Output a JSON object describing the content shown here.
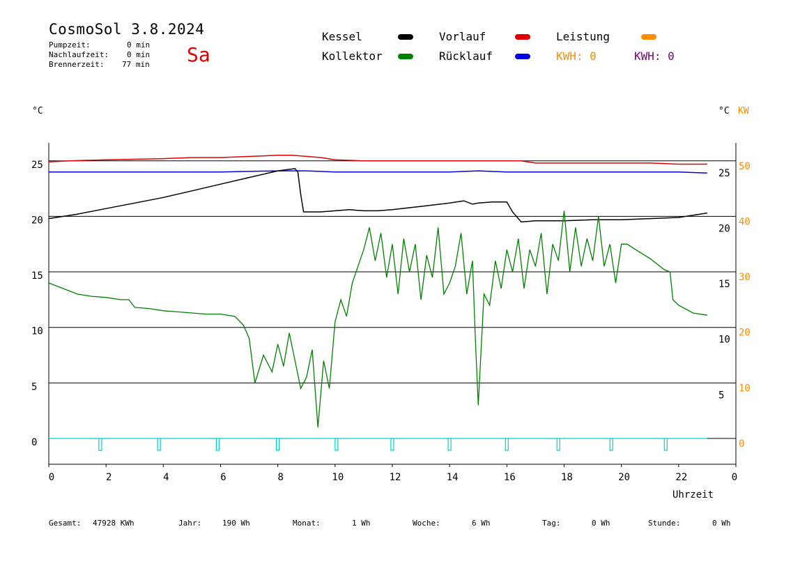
{
  "header": {
    "title": "CosmoSol 3.8.2024",
    "day": "Sa",
    "times": [
      {
        "label": "Pumpzeit:",
        "value": "0 min"
      },
      {
        "label": "Nachlaufzeit:",
        "value": "0 min"
      },
      {
        "label": "Brennerzeit:",
        "value": "77 min"
      }
    ]
  },
  "legend": {
    "kessel": "Kessel",
    "vorlauf": "Vorlauf",
    "leistung": "Leistung",
    "kollektor": "Kollektor",
    "ruecklauf": "Rücklauf",
    "kwh1": "KWH: 0",
    "kwh2": "KWH: 0"
  },
  "colors": {
    "kessel": "#000000",
    "vorlauf": "#e00000",
    "leistung": "#ff8c00",
    "kollektor": "#008000",
    "ruecklauf": "#0000e0",
    "kwh2": "#800080",
    "pump": "#00d0d0"
  },
  "footer": [
    {
      "label": "Gesamt:",
      "value": "47928 KWh"
    },
    {
      "label": "Jahr:",
      "value": "190 Wh"
    },
    {
      "label": "Monat:",
      "value": "1 Wh"
    },
    {
      "label": "Woche:",
      "value": "6 Wh"
    },
    {
      "label": "Tag:",
      "value": "0 Wh"
    },
    {
      "label": "Stunde:",
      "value": "0 Wh"
    }
  ],
  "chart_data": {
    "type": "line",
    "xlabel": "Uhrzeit",
    "xlim": [
      0,
      24
    ],
    "x_ticks": [
      "0",
      "2",
      "4",
      "6",
      "8",
      "10",
      "12",
      "14",
      "16",
      "18",
      "20",
      "22",
      "0"
    ],
    "left_axis_unit": "°C",
    "right_axis_unit_c": "°C",
    "right_axis_unit_kw": "KW",
    "ylim": [
      -2,
      26.5
    ],
    "left_ticks": [
      "0",
      "5",
      "10",
      "15",
      "20",
      "25"
    ],
    "right_ticks_c": [
      "5",
      "10",
      "15",
      "20",
      "25"
    ],
    "right_ticks_kw": [
      "0",
      "10",
      "20",
      "30",
      "40",
      "50"
    ],
    "hlines": [
      0,
      5,
      10,
      15,
      20,
      25
    ],
    "series": [
      {
        "name": "Vorlauf",
        "x": [
          0,
          0.7,
          2,
          4,
          5,
          6,
          8,
          8.5,
          9,
          9.5,
          10,
          11,
          12,
          14,
          16,
          16.5,
          17,
          18,
          19,
          20,
          21,
          22,
          23
        ],
        "y": [
          24.9,
          25.0,
          25.1,
          25.2,
          25.3,
          25.3,
          25.5,
          25.5,
          25.4,
          25.3,
          25.1,
          25.0,
          25.0,
          25.0,
          25.0,
          25.0,
          24.8,
          24.8,
          24.8,
          24.8,
          24.8,
          24.7,
          24.7
        ]
      },
      {
        "name": "Rücklauf",
        "x": [
          0,
          2,
          4,
          6,
          8,
          9,
          10,
          12,
          14,
          15,
          16,
          17,
          18,
          19,
          20,
          22,
          23
        ],
        "y": [
          24.0,
          24.0,
          24.0,
          24.0,
          24.1,
          24.1,
          24.0,
          24.0,
          24.0,
          24.1,
          24.0,
          24.0,
          24.0,
          24.0,
          24.0,
          24.0,
          23.9
        ]
      },
      {
        "name": "Kessel",
        "x": [
          0,
          1,
          2,
          3,
          4,
          5,
          6,
          7,
          8,
          8.6,
          8.7,
          8.8,
          8.9,
          9.5,
          10,
          10.5,
          11,
          11.5,
          12,
          13,
          14,
          14.5,
          14.8,
          15,
          15.5,
          16,
          16.2,
          16.5,
          17,
          18,
          19,
          20,
          21,
          22,
          23
        ],
        "y": [
          19.8,
          20.2,
          20.7,
          21.2,
          21.7,
          22.3,
          22.9,
          23.5,
          24.1,
          24.3,
          24.0,
          22.0,
          20.4,
          20.4,
          20.5,
          20.6,
          20.5,
          20.5,
          20.6,
          20.9,
          21.2,
          21.4,
          21.1,
          21.2,
          21.3,
          21.3,
          20.4,
          19.5,
          19.6,
          19.6,
          19.7,
          19.7,
          19.8,
          19.9,
          20.3
        ]
      },
      {
        "name": "Kollektor",
        "x": [
          0,
          0.5,
          1,
          1.5,
          2,
          2.5,
          2.8,
          3,
          3.5,
          4,
          4.5,
          5,
          5.5,
          6,
          6.5,
          6.8,
          7,
          7.2,
          7.5,
          7.8,
          8,
          8.2,
          8.4,
          8.6,
          8.8,
          9,
          9.2,
          9.4,
          9.6,
          9.8,
          10,
          10.2,
          10.4,
          10.6,
          10.8,
          11,
          11.2,
          11.4,
          11.6,
          11.8,
          12,
          12.2,
          12.4,
          12.6,
          12.8,
          13,
          13.2,
          13.4,
          13.6,
          13.8,
          14,
          14.2,
          14.4,
          14.6,
          14.8,
          14.9,
          15,
          15.2,
          15.4,
          15.6,
          15.8,
          16,
          16.2,
          16.4,
          16.6,
          16.8,
          17,
          17.2,
          17.4,
          17.6,
          17.8,
          18,
          18.2,
          18.4,
          18.6,
          18.8,
          19,
          19.2,
          19.4,
          19.6,
          19.8,
          20,
          20.2,
          20.5,
          21,
          21.5,
          21.7,
          21.8,
          22,
          22.5,
          23
        ],
        "y": [
          14.0,
          13.5,
          13.0,
          12.8,
          12.7,
          12.5,
          12.5,
          11.8,
          11.7,
          11.5,
          11.4,
          11.3,
          11.2,
          11.2,
          11.0,
          10.2,
          9.0,
          5.0,
          7.5,
          6.0,
          8.5,
          6.5,
          9.5,
          7.0,
          4.5,
          5.5,
          8.0,
          1.0,
          7.0,
          4.5,
          10.5,
          12.5,
          11.0,
          14.0,
          15.5,
          17.0,
          19.0,
          16.0,
          18.5,
          14.5,
          17.5,
          13.0,
          18.0,
          15.0,
          17.5,
          12.5,
          16.5,
          14.5,
          19.0,
          13.0,
          14.0,
          15.5,
          18.5,
          13.0,
          16.0,
          9.0,
          3.0,
          13.0,
          12.0,
          16.0,
          13.5,
          17.0,
          15.0,
          18.0,
          13.5,
          17.0,
          15.5,
          18.5,
          13.0,
          17.5,
          16.0,
          20.5,
          15.0,
          19.0,
          15.5,
          18.0,
          16.0,
          20.0,
          15.5,
          17.5,
          14.0,
          17.5,
          17.5,
          17.0,
          16.2,
          15.2,
          15.0,
          12.5,
          12.0,
          11.3,
          11.1
        ]
      }
    ],
    "pump_baseline": 0
  }
}
